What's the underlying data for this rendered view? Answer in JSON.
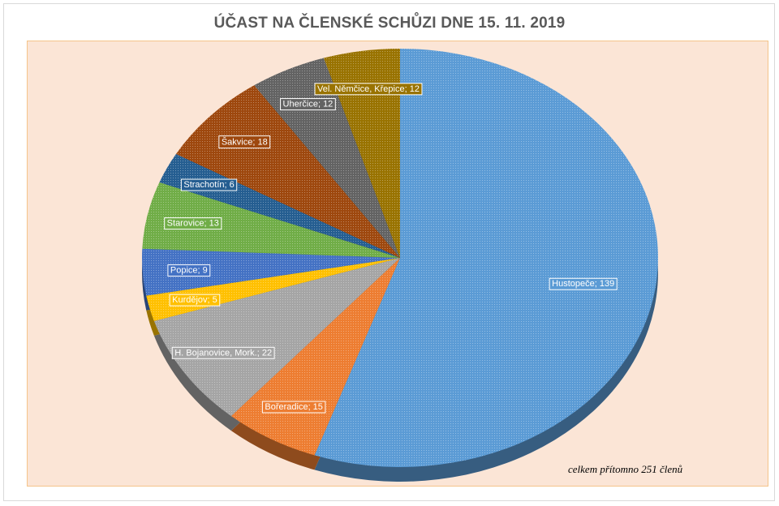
{
  "chart_data": {
    "type": "pie",
    "title": "ÚČAST NA ČLENSKÉ SCHŮZI DNE 15. 11. 2019",
    "series": [
      {
        "values": [
          139,
          15,
          22,
          5,
          9,
          13,
          6,
          18,
          12,
          12
        ],
        "categories": [
          "Hustopeče",
          "Bořeradice",
          "H. Bojanovice, Mork.",
          "Kurdějov",
          "Popice",
          "Starovice",
          "Strachotín",
          "Šakvice",
          "Uherčice",
          "Vel. Němčice, Křepice"
        ],
        "labels": [
          "Hustopeče; 139",
          "Bořeradice; 15",
          "H. Bojanovice, Mork.; 22",
          "Kurdějov; 5",
          "Popice; 9",
          "Starovice; 13",
          "Strachotín; 6",
          "Šakvice; 18",
          "Uherčice; 12",
          "Vel. Němčice, Křepice; 12"
        ],
        "colors": [
          "#5b9bd5",
          "#ed7d31",
          "#a5a5a5",
          "#ffc000",
          "#4472c4",
          "#70ad47",
          "#255e91",
          "#9e480e",
          "#636363",
          "#997300"
        ]
      }
    ],
    "annotation": "celkem přítomno 251 členů",
    "legend": "none",
    "style": "3d-pie"
  }
}
